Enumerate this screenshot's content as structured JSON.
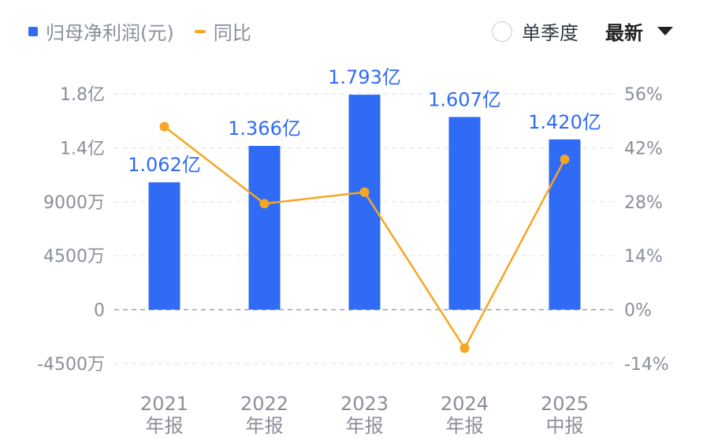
{
  "legend": {
    "bar_label": "归母净利润(元)",
    "line_label": "同比"
  },
  "controls": {
    "single_quarter_label": "单季度",
    "sort_label": "最新"
  },
  "colors": {
    "bar": "#2f6bf5",
    "line": "#f5a623",
    "bar_label": "#2f6bf5",
    "axis_text": "#8a8f99",
    "grid": "#e3e6ea",
    "zero_line": "#9a9ea6"
  },
  "chart_data": {
    "type": "bar",
    "categories": [
      "2021\n年报",
      "2022\n年报",
      "2023\n年报",
      "2024\n年报",
      "2025\n中报"
    ],
    "category_lines": [
      [
        "2021",
        "年报"
      ],
      [
        "2022",
        "年报"
      ],
      [
        "2023",
        "年报"
      ],
      [
        "2024",
        "年报"
      ],
      [
        "2025",
        "中报"
      ]
    ],
    "series": [
      {
        "name": "归母净利润(元)",
        "type": "bar",
        "axis": "left",
        "values": [
          106200000,
          136600000,
          179300000,
          160700000,
          142000000
        ],
        "labels": [
          "1.062亿",
          "1.366亿",
          "1.793亿",
          "1.607亿",
          "1.420亿"
        ]
      },
      {
        "name": "同比",
        "type": "line",
        "axis": "right",
        "values": [
          47.5,
          27.5,
          30.5,
          -10.0,
          39.0
        ]
      }
    ],
    "left_axis": {
      "ticks": [
        180000000,
        135000000,
        90000000,
        45000000,
        0,
        -45000000
      ],
      "tick_labels": [
        "1.8亿",
        "1.4亿",
        "9000万",
        "4500万",
        "0",
        "-4500万"
      ],
      "ylim": [
        -45000000,
        180000000
      ]
    },
    "right_axis": {
      "ticks": [
        56,
        42,
        28,
        14,
        0,
        -14
      ],
      "tick_labels": [
        "56%",
        "42%",
        "28%",
        "14%",
        "0%",
        "-14%"
      ],
      "ylim": [
        -14,
        56
      ]
    },
    "grid": true,
    "legend_position": "top-left"
  }
}
